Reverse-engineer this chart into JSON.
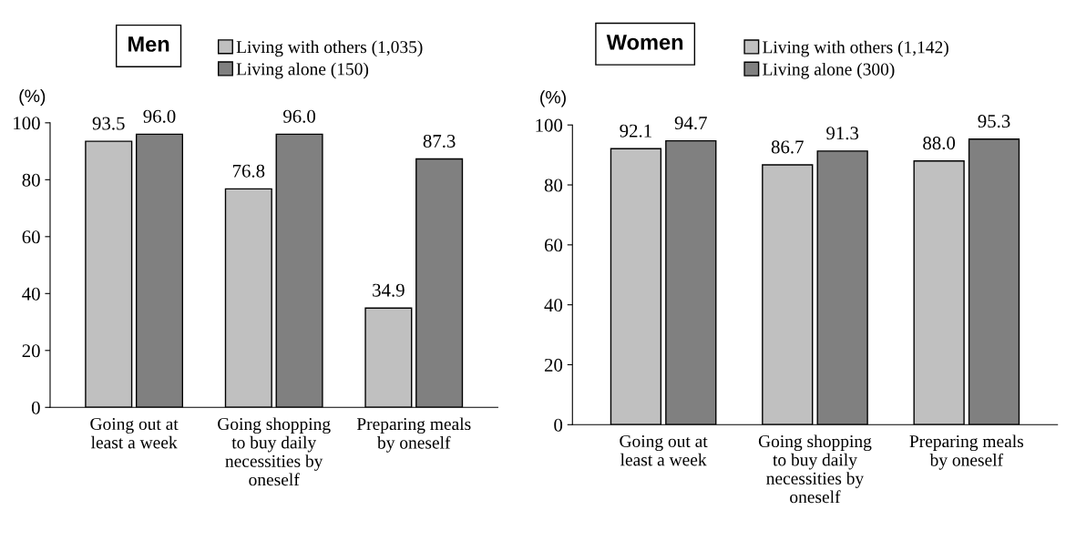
{
  "chart_data": [
    {
      "type": "bar",
      "title": "Men",
      "ylabel": "(%)",
      "categories": [
        "Going out at\nleast a week",
        "Going shopping\nto buy daily\nnecessities by\noneself",
        "Preparing meals\nby oneself"
      ],
      "series": [
        {
          "name": "Living with others (1,035)",
          "color": "#c0c0c0",
          "values": [
            93.5,
            76.8,
            34.9
          ],
          "value_labels": [
            "93.5",
            "76.8",
            "34.9"
          ]
        },
        {
          "name": "Living alone (150)",
          "color": "#808080",
          "values": [
            96.0,
            96.0,
            87.3
          ],
          "value_labels": [
            "96.0",
            "96.0",
            "87.3"
          ]
        }
      ],
      "ylim": [
        0,
        100
      ],
      "yticks": [
        0,
        20,
        40,
        60,
        80,
        100
      ],
      "legend": "top",
      "grid": false
    },
    {
      "type": "bar",
      "title": "Women",
      "ylabel": "(%)",
      "categories": [
        "Going out at\nleast a week",
        "Going shopping\nto buy daily\nnecessities by\noneself",
        "Preparing meals\nby oneself"
      ],
      "series": [
        {
          "name": "Living with others (1,142)",
          "color": "#c0c0c0",
          "values": [
            92.1,
            86.7,
            88.0
          ],
          "value_labels": [
            "92.1",
            "86.7",
            "88.0"
          ]
        },
        {
          "name": "Living alone (300)",
          "color": "#808080",
          "values": [
            94.7,
            91.3,
            95.3
          ],
          "value_labels": [
            "94.7",
            "91.3",
            "95.3"
          ]
        }
      ],
      "ylim": [
        0,
        100
      ],
      "yticks": [
        0,
        20,
        40,
        60,
        80,
        100
      ],
      "legend": "top",
      "grid": false
    }
  ]
}
